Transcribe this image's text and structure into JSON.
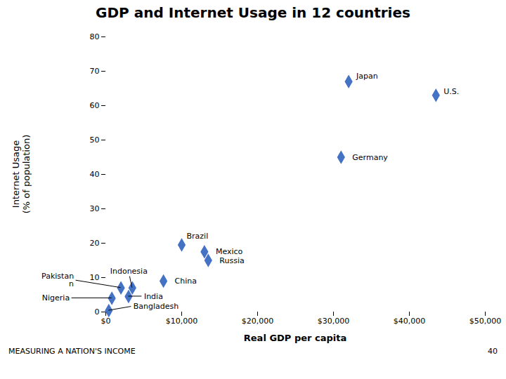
{
  "chart_data": {
    "type": "scatter",
    "title": "GDP and Internet Usage in 12 countries",
    "xlabel": "Real GDP per capita",
    "ylabel": "Internet Usage\n(% of population)",
    "labels": [
      "Bangladesh",
      "Nigeria",
      "Pakistan\nn",
      "India",
      "Indonesia",
      "China",
      "Brazil",
      "Mexico",
      "Russia",
      "Germany",
      "Japan",
      "U.S."
    ],
    "x": [
      400,
      800,
      2000,
      3000,
      3500,
      7600,
      10000,
      13000,
      13500,
      31000,
      32000,
      43500
    ],
    "values": [
      0.4,
      4.0,
      7.0,
      4.5,
      7.0,
      9.0,
      19.5,
      17.5,
      15.0,
      45.0,
      67.0,
      63.0
    ],
    "color": "#4472c4",
    "marker": "diamond",
    "xlim": [
      0,
      50000
    ],
    "ylim": [
      0,
      80
    ],
    "xticks": [
      {
        "value": 0,
        "label": "$0"
      },
      {
        "value": 10000,
        "label": "$10,000"
      },
      {
        "value": 20000,
        "label": "$20,000"
      },
      {
        "value": 30000,
        "label": "$30,000"
      },
      {
        "value": 40000,
        "label": "$40,000"
      },
      {
        "value": 50000,
        "label": "$50,000"
      }
    ],
    "yticks": [
      0,
      10,
      20,
      30,
      40,
      50,
      60,
      70,
      80
    ],
    "grid": false,
    "annotations": [
      "MEASURING A NATION'S INCOME",
      "40"
    ]
  }
}
